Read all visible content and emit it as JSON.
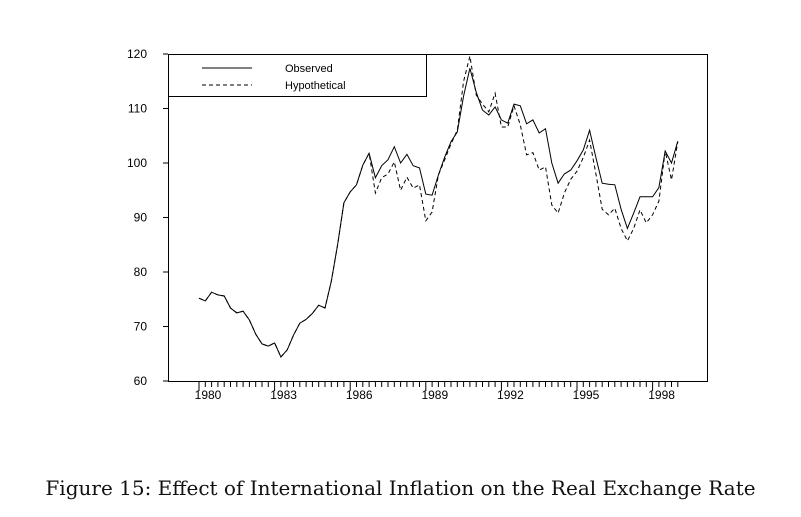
{
  "chart_data": {
    "type": "line",
    "title": "",
    "xlabel": "",
    "ylabel": "",
    "x_start": 1980,
    "x_step": 0.25,
    "xlim": [
      1978.8,
      2000.0
    ],
    "ylim": [
      60,
      120
    ],
    "yticks": [
      60,
      70,
      80,
      90,
      100,
      110,
      120
    ],
    "xticks": [
      1980,
      1983,
      1986,
      1989,
      1992,
      1995,
      1998
    ],
    "legend_position": "top-left",
    "series": [
      {
        "name": "Observed",
        "style": "solid",
        "values": [
          75.2,
          74.7,
          76.3,
          75.8,
          75.6,
          73.4,
          72.5,
          72.8,
          71.2,
          68.6,
          66.8,
          66.4,
          67.0,
          64.4,
          65.7,
          68.4,
          70.6,
          71.3,
          72.4,
          73.9,
          73.4,
          78.3,
          85.0,
          92.7,
          94.7,
          96.0,
          99.6,
          101.8,
          97.3,
          99.5,
          100.6,
          103.0,
          100.0,
          101.6,
          99.5,
          99.1,
          94.3,
          94.1,
          97.8,
          101.1,
          103.9,
          105.7,
          112.3,
          117.4,
          113.0,
          109.7,
          108.8,
          110.3,
          107.9,
          107.3,
          110.8,
          110.5,
          107.2,
          107.9,
          105.5,
          106.3,
          100.0,
          96.3,
          98.0,
          98.7,
          100.4,
          102.4,
          106.0,
          101.0,
          96.3,
          96.1,
          96.0,
          91.5,
          88.0,
          90.8,
          93.8,
          93.8,
          93.8,
          95.5,
          102.2,
          100.0,
          104.0
        ]
      },
      {
        "name": "Hypothetical",
        "style": "dashed",
        "values": [
          75.2,
          74.7,
          76.3,
          75.8,
          75.6,
          73.4,
          72.5,
          72.8,
          71.2,
          68.6,
          66.8,
          66.4,
          67.0,
          64.4,
          65.7,
          68.4,
          70.6,
          71.3,
          72.4,
          73.9,
          73.4,
          78.3,
          85.0,
          92.7,
          94.7,
          96.0,
          99.6,
          101.8,
          94.5,
          97.3,
          98.0,
          100.2,
          95.0,
          97.4,
          95.4,
          96.0,
          89.4,
          91.0,
          97.8,
          100.6,
          103.5,
          106.0,
          115.0,
          119.6,
          112.5,
          110.8,
          109.4,
          112.8,
          106.6,
          106.6,
          110.5,
          107.0,
          101.5,
          101.9,
          98.7,
          99.3,
          92.3,
          90.8,
          94.5,
          97.0,
          98.5,
          101.0,
          104.2,
          98.0,
          91.5,
          90.5,
          91.7,
          88.0,
          85.7,
          88.0,
          91.4,
          89.0,
          90.5,
          93.0,
          102.2,
          96.9,
          103.9
        ]
      }
    ]
  },
  "caption": "Figure 15: Effect of International Inflation on the Real Exchange Rate"
}
